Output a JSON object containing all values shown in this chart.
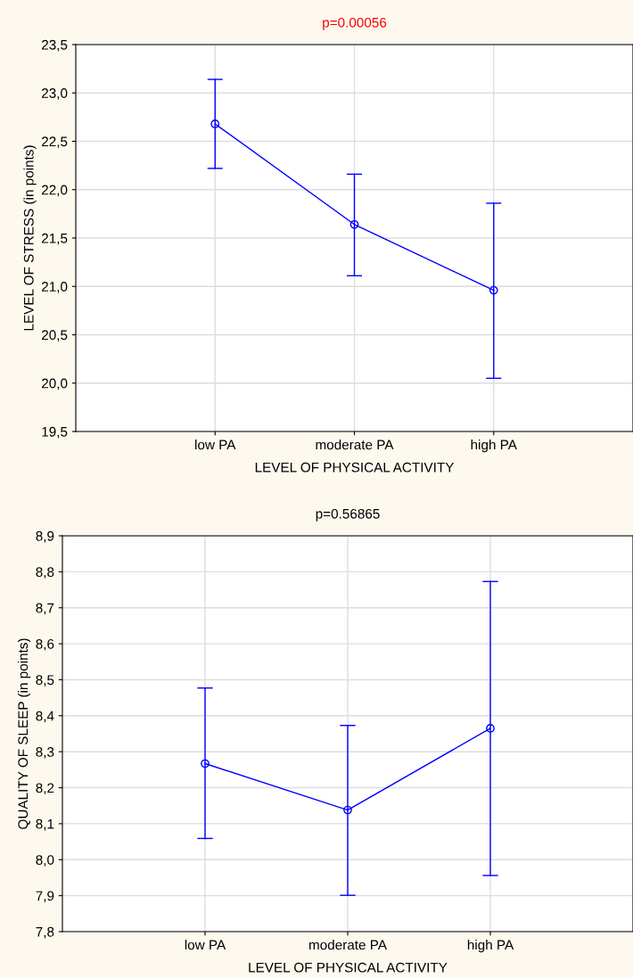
{
  "chart_data": [
    {
      "type": "line",
      "title": "p=0.00056",
      "xlabel": "LEVEL OF PHYSICAL ACTIVITY",
      "ylabel": "LEVEL OF STRESS (in points)",
      "categories": [
        "low PA",
        "moderate PA",
        "high PA"
      ],
      "series": [
        {
          "color": "#0000ff",
          "values": [
            22.68,
            21.64,
            20.96
          ],
          "errors": [
            [
              22.22,
              23.14
            ],
            [
              21.11,
              22.16
            ],
            [
              20.05,
              21.86
            ]
          ]
        }
      ],
      "ylim": [
        19.5,
        23.5
      ],
      "yticks": [
        {
          "value": 19.5,
          "label": "19,5"
        },
        {
          "value": 20.0,
          "label": "20,0"
        },
        {
          "value": 20.5,
          "label": "20,5"
        },
        {
          "value": 21.0,
          "label": "21,0"
        },
        {
          "value": 21.5,
          "label": "21,5"
        },
        {
          "value": 22.0,
          "label": "22,0"
        },
        {
          "value": 22.5,
          "label": "22,5"
        },
        {
          "value": 23.0,
          "label": "23,0"
        },
        {
          "value": 23.5,
          "label": "23,5"
        }
      ],
      "grid": true,
      "marker": "circle",
      "line_style": "solid"
    },
    {
      "type": "line",
      "title": "p=0.56865",
      "xlabel": "LEVEL OF PHYSICAL ACTIVITY",
      "ylabel": "QUALITY OF SLEEP (in points)",
      "categories": [
        "low PA",
        "moderate PA",
        "high PA"
      ],
      "series": [
        {
          "color": "#0000ff",
          "values": [
            8.267,
            8.138,
            8.365
          ],
          "errors": [
            [
              8.059,
              8.477
            ],
            [
              7.901,
              8.373
            ],
            [
              7.956,
              8.773
            ]
          ]
        }
      ],
      "ylim": [
        7.8,
        8.9
      ],
      "yticks": [
        {
          "value": 7.8,
          "label": "7,8"
        },
        {
          "value": 7.9,
          "label": "7,9"
        },
        {
          "value": 8.0,
          "label": "8,0"
        },
        {
          "value": 8.1,
          "label": "8,1"
        },
        {
          "value": 8.2,
          "label": "8,2"
        },
        {
          "value": 8.3,
          "label": "8,3"
        },
        {
          "value": 8.4,
          "label": "8,4"
        },
        {
          "value": 8.5,
          "label": "8,5"
        },
        {
          "value": 8.6,
          "label": "8,6"
        },
        {
          "value": 8.7,
          "label": "8,7"
        },
        {
          "value": 8.8,
          "label": "8,8"
        },
        {
          "value": 8.9,
          "label": "8,9"
        }
      ],
      "grid": true,
      "marker": "circle",
      "line_style": "solid"
    }
  ]
}
